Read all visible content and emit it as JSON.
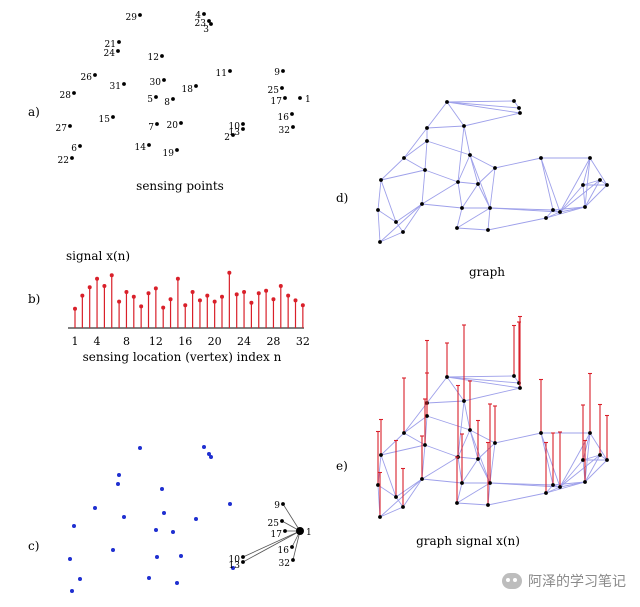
{
  "panels": {
    "a": {
      "letter": "a)",
      "caption": "sensing points"
    },
    "b": {
      "letter": "b)",
      "signal_label": "signal x(n)",
      "axis_label": "sensing location (vertex) index n",
      "ticks": [
        "1",
        "4",
        "8",
        "12",
        "16",
        "20",
        "24",
        "28",
        "32"
      ]
    },
    "c": {
      "letter": "c)"
    },
    "d": {
      "letter": "d)",
      "caption": "graph"
    },
    "e": {
      "letter": "e)",
      "caption": "graph signal x(n)"
    }
  },
  "points": [
    {
      "id": "1"
    },
    {
      "id": "2"
    },
    {
      "id": "3"
    },
    {
      "id": "4"
    },
    {
      "id": "5"
    },
    {
      "id": "6"
    },
    {
      "id": "7"
    },
    {
      "id": "8"
    },
    {
      "id": "9"
    },
    {
      "id": "10"
    },
    {
      "id": "11"
    },
    {
      "id": "12"
    },
    {
      "id": "13"
    },
    {
      "id": "14"
    },
    {
      "id": "15"
    },
    {
      "id": "16"
    },
    {
      "id": "17"
    },
    {
      "id": "18"
    },
    {
      "id": "19"
    },
    {
      "id": "20"
    },
    {
      "id": "21"
    },
    {
      "id": "22"
    },
    {
      "id": "23"
    },
    {
      "id": "24"
    },
    {
      "id": "25"
    },
    {
      "id": "26"
    },
    {
      "id": "27"
    },
    {
      "id": "28"
    },
    {
      "id": "29"
    },
    {
      "id": "30"
    },
    {
      "id": "31"
    },
    {
      "id": "32"
    }
  ],
  "neighbors_of_1": [
    "9",
    "25",
    "17",
    "16",
    "13",
    "10",
    "32"
  ],
  "highlight_vertex": "1",
  "signal_values": [
    0.32,
    0.54,
    0.68,
    0.82,
    0.7,
    0.88,
    0.44,
    0.6,
    0.52,
    0.36,
    0.58,
    0.66,
    0.34,
    0.48,
    0.82,
    0.38,
    0.6,
    0.46,
    0.54,
    0.44,
    0.52,
    0.92,
    0.56,
    0.6,
    0.42,
    0.58,
    0.62,
    0.48,
    0.7,
    0.54,
    0.46,
    0.38
  ],
  "watermark": "阿泽的学习笔记",
  "colors": {
    "signal": "#d9202a",
    "edge": "#9ea0ea",
    "node": "#000000",
    "blue_node": "#1f2fd0"
  }
}
